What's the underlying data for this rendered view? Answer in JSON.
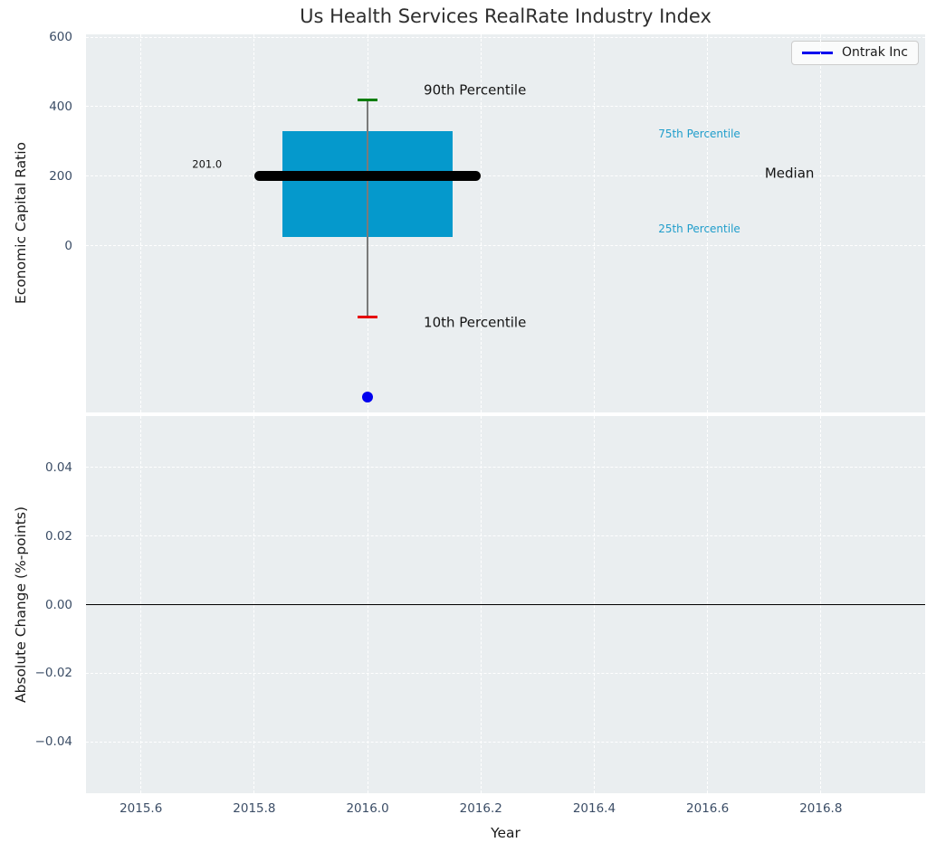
{
  "title": "Us Health Services RealRate Industry Index",
  "legend": {
    "label": "Ontrak Inc",
    "line_color": "#0000ee",
    "position": "upper right"
  },
  "colors": {
    "figure_background": "#ffffff",
    "axes_background": "#eaeef0",
    "grid": "#ffffff",
    "tick_label": "#3b4d66",
    "text": "#1a1a1a",
    "box_fill": "#0599cc",
    "median_line": "#000000",
    "whisker": "#7a7a7a",
    "p90_cap": "#007d00",
    "p10_cap": "#e60000",
    "point": "#0000ee",
    "percentile_label": "#1f9dcb",
    "zero_line": "#000000"
  },
  "chart_data": [
    {
      "type": "box",
      "title": "Us Health Services RealRate Industry Index",
      "ylabel": "Economic Capital Ratio",
      "xlim": [
        2015.503,
        2016.984
      ],
      "ylim": [
        -480,
        608
      ],
      "xticks": [
        2015.6,
        2015.8,
        2016.0,
        2016.2,
        2016.4,
        2016.6,
        2016.8
      ],
      "show_xtick_labels": false,
      "yticks": [
        0,
        200,
        400,
        600
      ],
      "tick_decimals": {
        "x": 1,
        "y": 0
      },
      "grid": true,
      "box": {
        "x_center": 2016.0,
        "x_left": 2015.85,
        "x_right": 2016.15,
        "q1": 25,
        "q3": 330,
        "median": 201,
        "median_x_left": 2015.8,
        "median_x_right": 2016.2,
        "p90": 418,
        "p10": -205
      },
      "points": [
        {
          "x": 2016.0,
          "y": -435,
          "series": "Ontrak Inc"
        }
      ],
      "annotations": [
        {
          "name": "label-90th-percentile",
          "text": "90th Percentile",
          "x": 2016.099,
          "y": 447,
          "style": "large",
          "anchor": "left"
        },
        {
          "name": "label-10th-percentile",
          "text": "10th Percentile",
          "x": 2016.099,
          "y": -223,
          "style": "large",
          "anchor": "left"
        },
        {
          "name": "label-75th-percentile",
          "text": "75th Percentile",
          "x": 2016.513,
          "y": 320,
          "style": "cyan",
          "anchor": "left"
        },
        {
          "name": "label-25th-percentile",
          "text": "25th Percentile",
          "x": 2016.513,
          "y": 47,
          "style": "cyan",
          "anchor": "left"
        },
        {
          "name": "label-median",
          "text": "Median",
          "x": 2016.701,
          "y": 208,
          "style": "large",
          "anchor": "left"
        },
        {
          "name": "label-median-value",
          "text": "201.0",
          "x": 2015.743,
          "y": 232,
          "style": "tiny",
          "anchor": "right"
        }
      ]
    },
    {
      "type": "line",
      "ylabel": "Absolute Change (%-points)",
      "xlabel": "Year",
      "xlim": [
        2015.503,
        2016.984
      ],
      "ylim": [
        -0.055,
        0.055
      ],
      "xticks": [
        2015.6,
        2015.8,
        2016.0,
        2016.2,
        2016.4,
        2016.6,
        2016.8
      ],
      "show_xtick_labels": true,
      "yticks": [
        -0.04,
        -0.02,
        0,
        0.02,
        0.04
      ],
      "tick_decimals": {
        "x": 1,
        "y": 2
      },
      "grid": true,
      "zero_line": 0.0,
      "series": []
    }
  ]
}
